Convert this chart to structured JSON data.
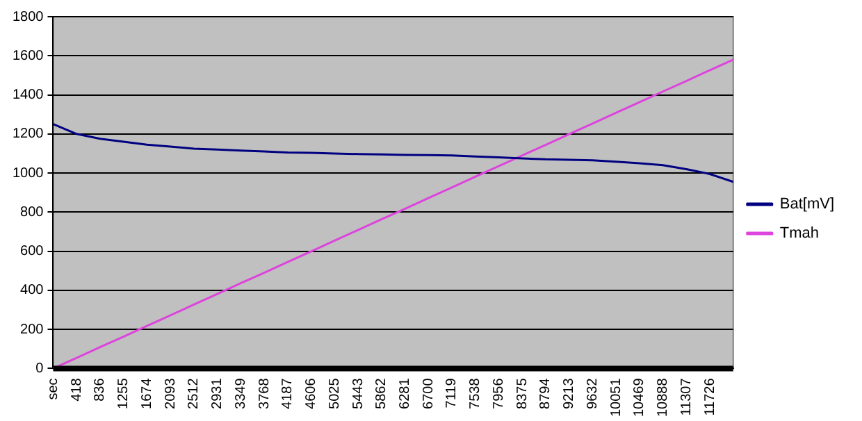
{
  "chart_data": {
    "type": "line",
    "categories": [
      "sec",
      "418",
      "836",
      "1255",
      "1674",
      "2093",
      "2512",
      "2931",
      "3349",
      "3768",
      "4187",
      "4606",
      "5025",
      "5443",
      "5862",
      "6281",
      "6700",
      "7119",
      "7538",
      "7956",
      "8375",
      "8794",
      "9213",
      "9632",
      "10051",
      "10469",
      "10888",
      "11307",
      "11726",
      null
    ],
    "series": [
      {
        "name": "Bat[mV]",
        "color": "#000080",
        "values": [
          1250,
          1200,
          1175,
          1160,
          1145,
          1135,
          1125,
          1120,
          1115,
          1110,
          1105,
          1103,
          1100,
          1097,
          1095,
          1093,
          1092,
          1090,
          1085,
          1080,
          1075,
          1070,
          1068,
          1065,
          1058,
          1050,
          1040,
          1020,
          995,
          955
        ]
      },
      {
        "name": "Tmah",
        "color": "#dd44dd",
        "values": [
          0,
          54,
          109,
          163,
          218,
          272,
          327,
          381,
          436,
          490,
          545,
          599,
          654,
          708,
          763,
          817,
          872,
          926,
          981,
          1035,
          1090,
          1144,
          1199,
          1253,
          1308,
          1362,
          1417,
          1471,
          1526,
          1580
        ]
      }
    ],
    "ylim": [
      0,
      1800
    ],
    "yticks": [
      0,
      200,
      400,
      600,
      800,
      1000,
      1200,
      1400,
      1600,
      1800
    ],
    "grid": "y",
    "legend": "right",
    "marker": "none",
    "line_style": "solid"
  }
}
